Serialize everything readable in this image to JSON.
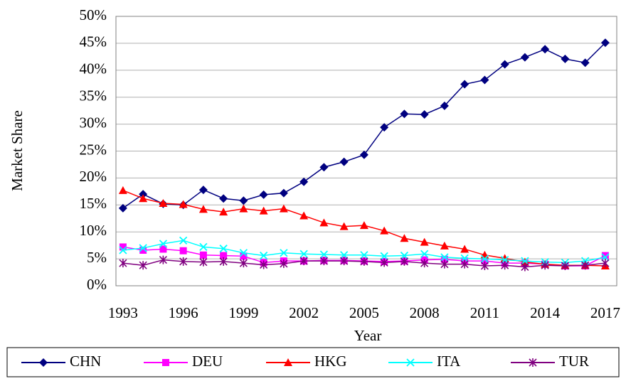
{
  "chart_data": {
    "type": "line",
    "x": [
      1993,
      1994,
      1995,
      1996,
      1997,
      1998,
      1999,
      2000,
      2001,
      2002,
      2003,
      2004,
      2005,
      2006,
      2007,
      2008,
      2009,
      2010,
      2011,
      2012,
      2013,
      2014,
      2015,
      2016,
      2017
    ],
    "series": [
      {
        "name": "CHN",
        "color": "#000080",
        "marker": "diamond",
        "values": [
          14.4,
          17.0,
          15.2,
          15.0,
          17.8,
          16.2,
          15.8,
          16.9,
          17.2,
          19.3,
          22.0,
          23.0,
          24.3,
          29.4,
          31.9,
          31.8,
          33.4,
          37.4,
          38.2,
          41.1,
          42.4,
          43.9,
          42.1,
          41.4,
          45.1
        ]
      },
      {
        "name": "DEU",
        "color": "#ff00ff",
        "marker": "square",
        "values": [
          7.2,
          6.6,
          6.8,
          6.5,
          5.7,
          5.6,
          5.5,
          4.3,
          4.6,
          4.6,
          4.7,
          4.7,
          4.6,
          4.5,
          4.6,
          4.8,
          4.9,
          4.6,
          4.6,
          4.2,
          4.2,
          4.0,
          3.7,
          3.7,
          5.6
        ]
      },
      {
        "name": "HKG",
        "color": "#ff0000",
        "marker": "triangle",
        "values": [
          17.7,
          16.2,
          15.3,
          15.1,
          14.2,
          13.7,
          14.3,
          13.9,
          14.3,
          13.0,
          11.7,
          11.0,
          11.2,
          10.2,
          8.8,
          8.1,
          7.4,
          6.8,
          5.7,
          5.1,
          4.4,
          4.0,
          3.8,
          3.8,
          3.7
        ]
      },
      {
        "name": "ITA",
        "color": "#00ffff",
        "marker": "x",
        "values": [
          6.6,
          7.0,
          7.8,
          8.4,
          7.2,
          6.9,
          6.1,
          5.6,
          6.1,
          5.9,
          5.8,
          5.7,
          5.7,
          5.5,
          5.6,
          5.9,
          5.3,
          5.1,
          5.0,
          4.8,
          4.6,
          4.4,
          4.3,
          4.6,
          5.3
        ]
      },
      {
        "name": "TUR",
        "color": "#800080",
        "marker": "asterisk",
        "values": [
          4.2,
          3.8,
          4.8,
          4.5,
          4.4,
          4.5,
          4.2,
          3.9,
          4.1,
          4.6,
          4.6,
          4.6,
          4.5,
          4.3,
          4.5,
          4.2,
          4.0,
          4.0,
          3.7,
          3.8,
          3.5,
          3.8,
          3.7,
          3.8,
          4.2
        ]
      }
    ],
    "xlabel": "Year",
    "ylabel": "Market Share",
    "xlim": [
      1992.65,
      2017.57
    ],
    "xticks": [
      1993,
      1996,
      1999,
      2002,
      2005,
      2008,
      2011,
      2014,
      2017
    ],
    "ylim": [
      0,
      50
    ],
    "yticks": [
      {
        "value": 0,
        "label": "0%"
      },
      {
        "value": 5,
        "label": "5%"
      },
      {
        "value": 10,
        "label": "10%"
      },
      {
        "value": 15,
        "label": "15%"
      },
      {
        "value": 20,
        "label": "20%"
      },
      {
        "value": 25,
        "label": "25%"
      },
      {
        "value": 30,
        "label": "30%"
      },
      {
        "value": 35,
        "label": "35%"
      },
      {
        "value": 40,
        "label": "40%"
      },
      {
        "value": 45,
        "label": "45%"
      },
      {
        "value": 50,
        "label": "50%"
      }
    ],
    "grid": true,
    "legend": "bottom"
  }
}
